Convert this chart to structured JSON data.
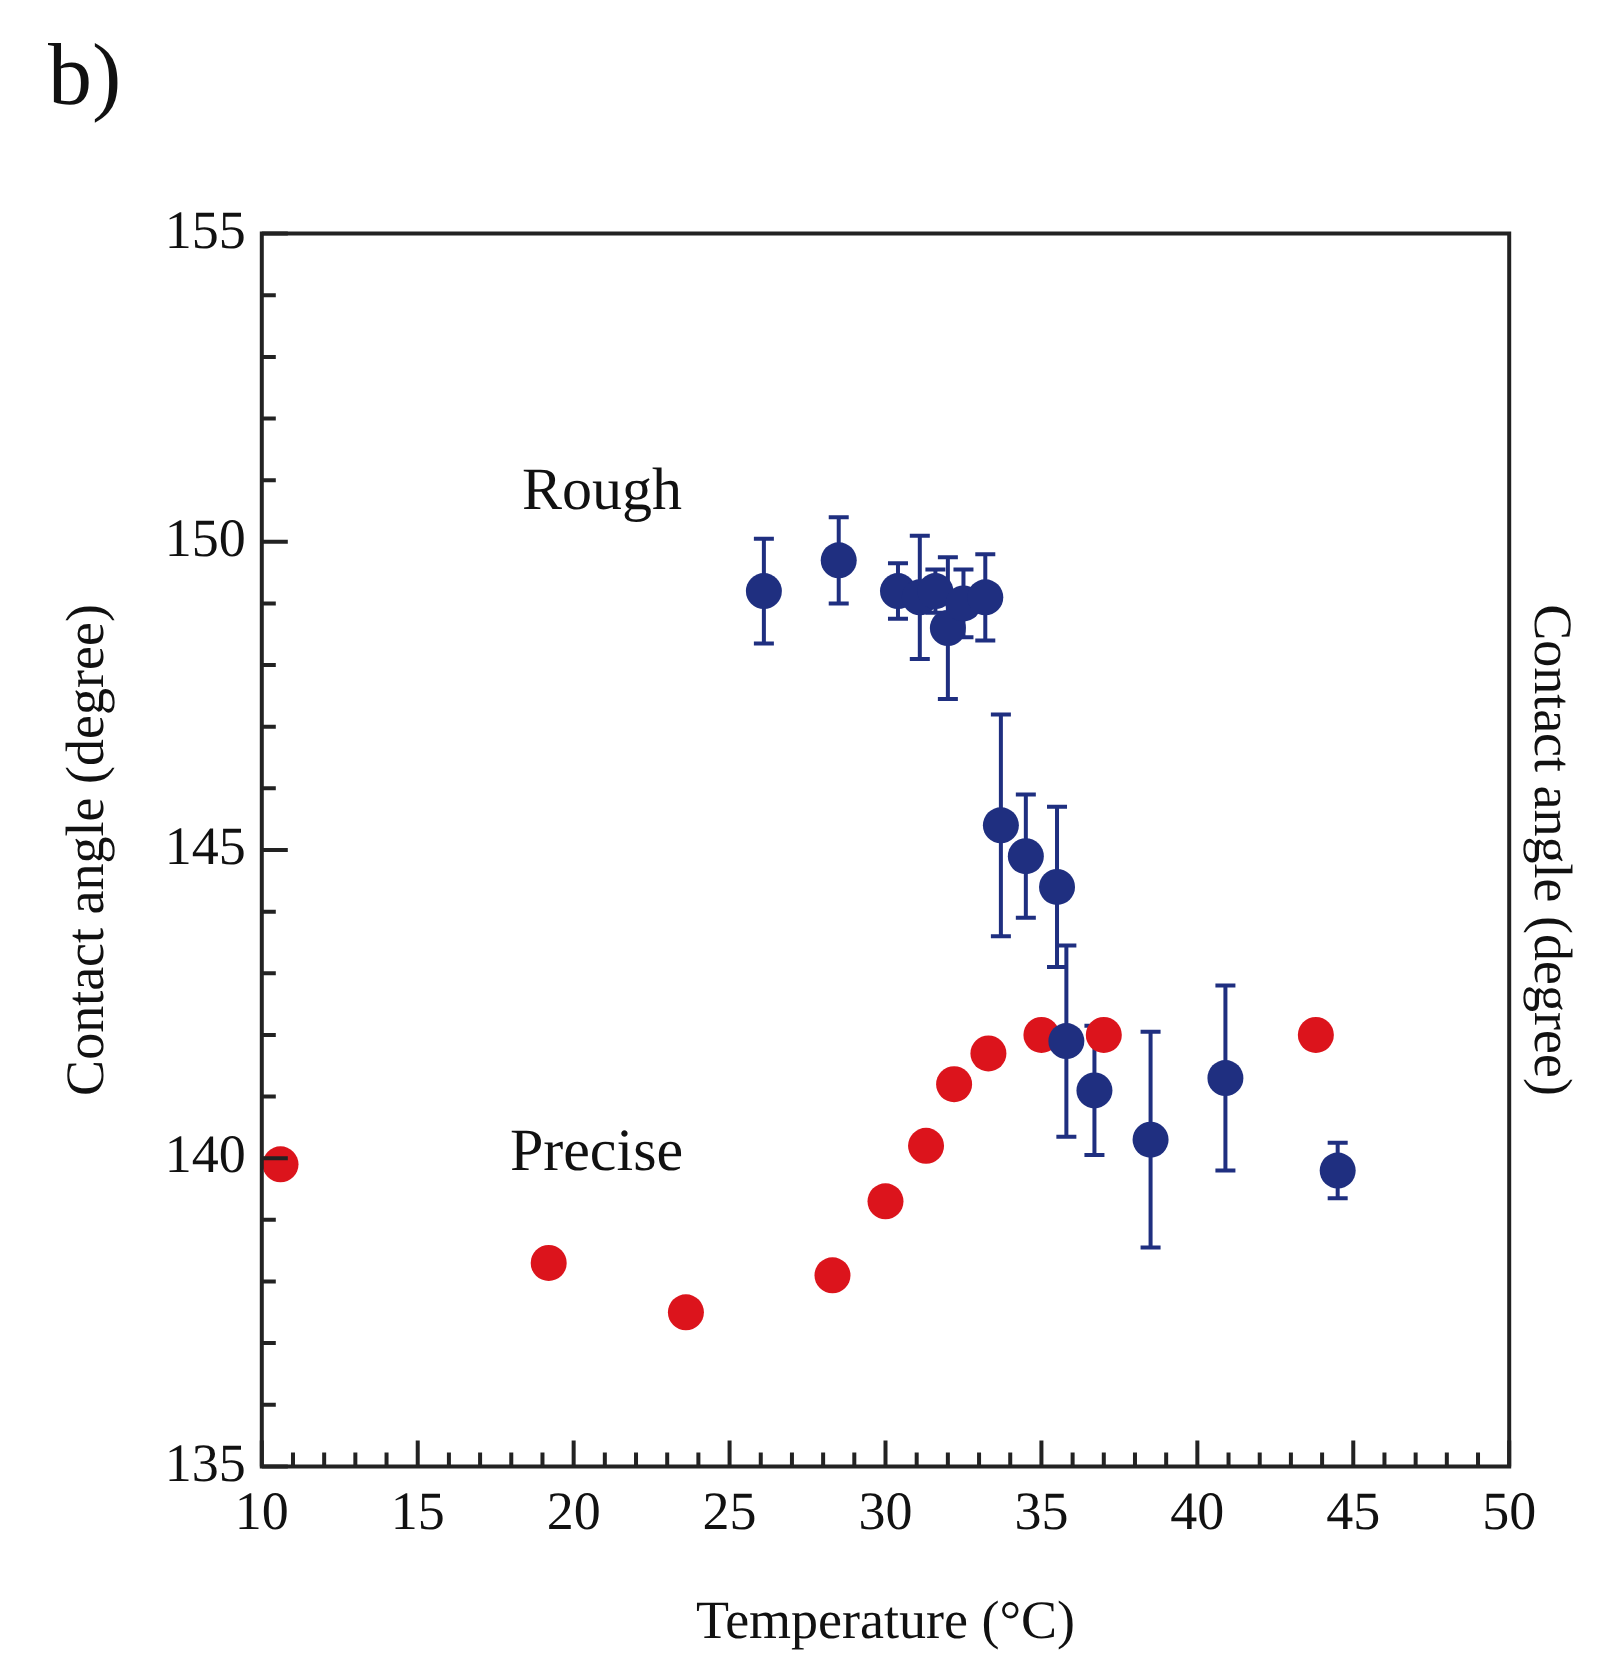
{
  "chart_data": {
    "type": "scatter",
    "title": "b)",
    "xlabel": "Temperature (°C)",
    "ylabel": "Contact angle (degree)",
    "y2label": "Contact angle (degree)",
    "xlim": [
      10,
      50
    ],
    "ylim": [
      135,
      155
    ],
    "xticks": [
      10,
      {
        "value": 11,
        "label": null
      },
      {
        "value": 12,
        "label": null
      },
      {
        "value": 13,
        "label": null
      },
      {
        "value": 14,
        "label": null
      },
      15,
      {
        "value": 16,
        "label": null
      },
      {
        "value": 17,
        "label": null
      },
      {
        "value": 18,
        "label": null
      },
      {
        "value": 19,
        "label": null
      },
      20,
      {
        "value": 21,
        "label": null
      },
      {
        "value": 22,
        "label": null
      },
      {
        "value": 23,
        "label": null
      },
      {
        "value": 24,
        "label": null
      },
      25,
      {
        "value": 26,
        "label": null
      },
      {
        "value": 27,
        "label": null
      },
      {
        "value": 28,
        "label": null
      },
      {
        "value": 29,
        "label": null
      },
      30,
      {
        "value": 31,
        "label": null
      },
      {
        "value": 32,
        "label": null
      },
      {
        "value": 33,
        "label": null
      },
      {
        "value": 34,
        "label": null
      },
      35,
      {
        "value": 36,
        "label": null
      },
      {
        "value": 37,
        "label": null
      },
      {
        "value": 38,
        "label": null
      },
      {
        "value": 39,
        "label": null
      },
      40,
      {
        "value": 41,
        "label": null
      },
      {
        "value": 42,
        "label": null
      },
      {
        "value": 43,
        "label": null
      },
      {
        "value": 44,
        "label": null
      },
      45,
      {
        "value": 46,
        "label": null
      },
      {
        "value": 47,
        "label": null
      },
      {
        "value": 48,
        "label": null
      },
      {
        "value": 49,
        "label": null
      },
      50
    ],
    "yticks": [
      135,
      {
        "value": 136,
        "label": null
      },
      {
        "value": 137,
        "label": null
      },
      {
        "value": 138,
        "label": null
      },
      {
        "value": 139,
        "label": null
      },
      140,
      {
        "value": 141,
        "label": null
      },
      {
        "value": 142,
        "label": null
      },
      {
        "value": 143,
        "label": null
      },
      {
        "value": 144,
        "label": null
      },
      145,
      {
        "value": 146,
        "label": null
      },
      {
        "value": 147,
        "label": null
      },
      {
        "value": 148,
        "label": null
      },
      {
        "value": 149,
        "label": null
      },
      150,
      {
        "value": 151,
        "label": null
      },
      {
        "value": 152,
        "label": null
      },
      {
        "value": 153,
        "label": null
      },
      {
        "value": 154,
        "label": null
      },
      155
    ],
    "marker": "circle",
    "legend": false,
    "series": [
      {
        "name": "Rough",
        "color": "#1f2f80",
        "x": [
          26.1,
          28.5,
          30.4,
          31.1,
          31.6,
          32.0,
          32.5,
          33.2,
          33.7,
          34.5,
          35.5,
          35.8,
          36.7,
          38.5,
          40.9,
          44.5
        ],
        "values": [
          149.2,
          149.7,
          149.2,
          149.1,
          149.2,
          148.6,
          149.0,
          149.1,
          145.4,
          144.9,
          144.4,
          141.9,
          141.1,
          140.3,
          141.3,
          139.8
        ],
        "errors": [
          0.85,
          0.7,
          0.45,
          1.0,
          0.35,
          1.15,
          0.55,
          0.7,
          1.8,
          1.0,
          1.3,
          1.55,
          1.05,
          1.75,
          1.5,
          0.45
        ]
      },
      {
        "name": "Precise",
        "color": "#dc141c",
        "x": [
          10.6,
          19.2,
          23.6,
          28.3,
          30.0,
          31.3,
          32.2,
          33.3,
          35.0,
          37.0,
          43.8
        ],
        "values": [
          139.9,
          138.3,
          137.5,
          138.1,
          139.3,
          140.2,
          141.2,
          141.7,
          142.0,
          142.0,
          142.0
        ]
      }
    ]
  }
}
